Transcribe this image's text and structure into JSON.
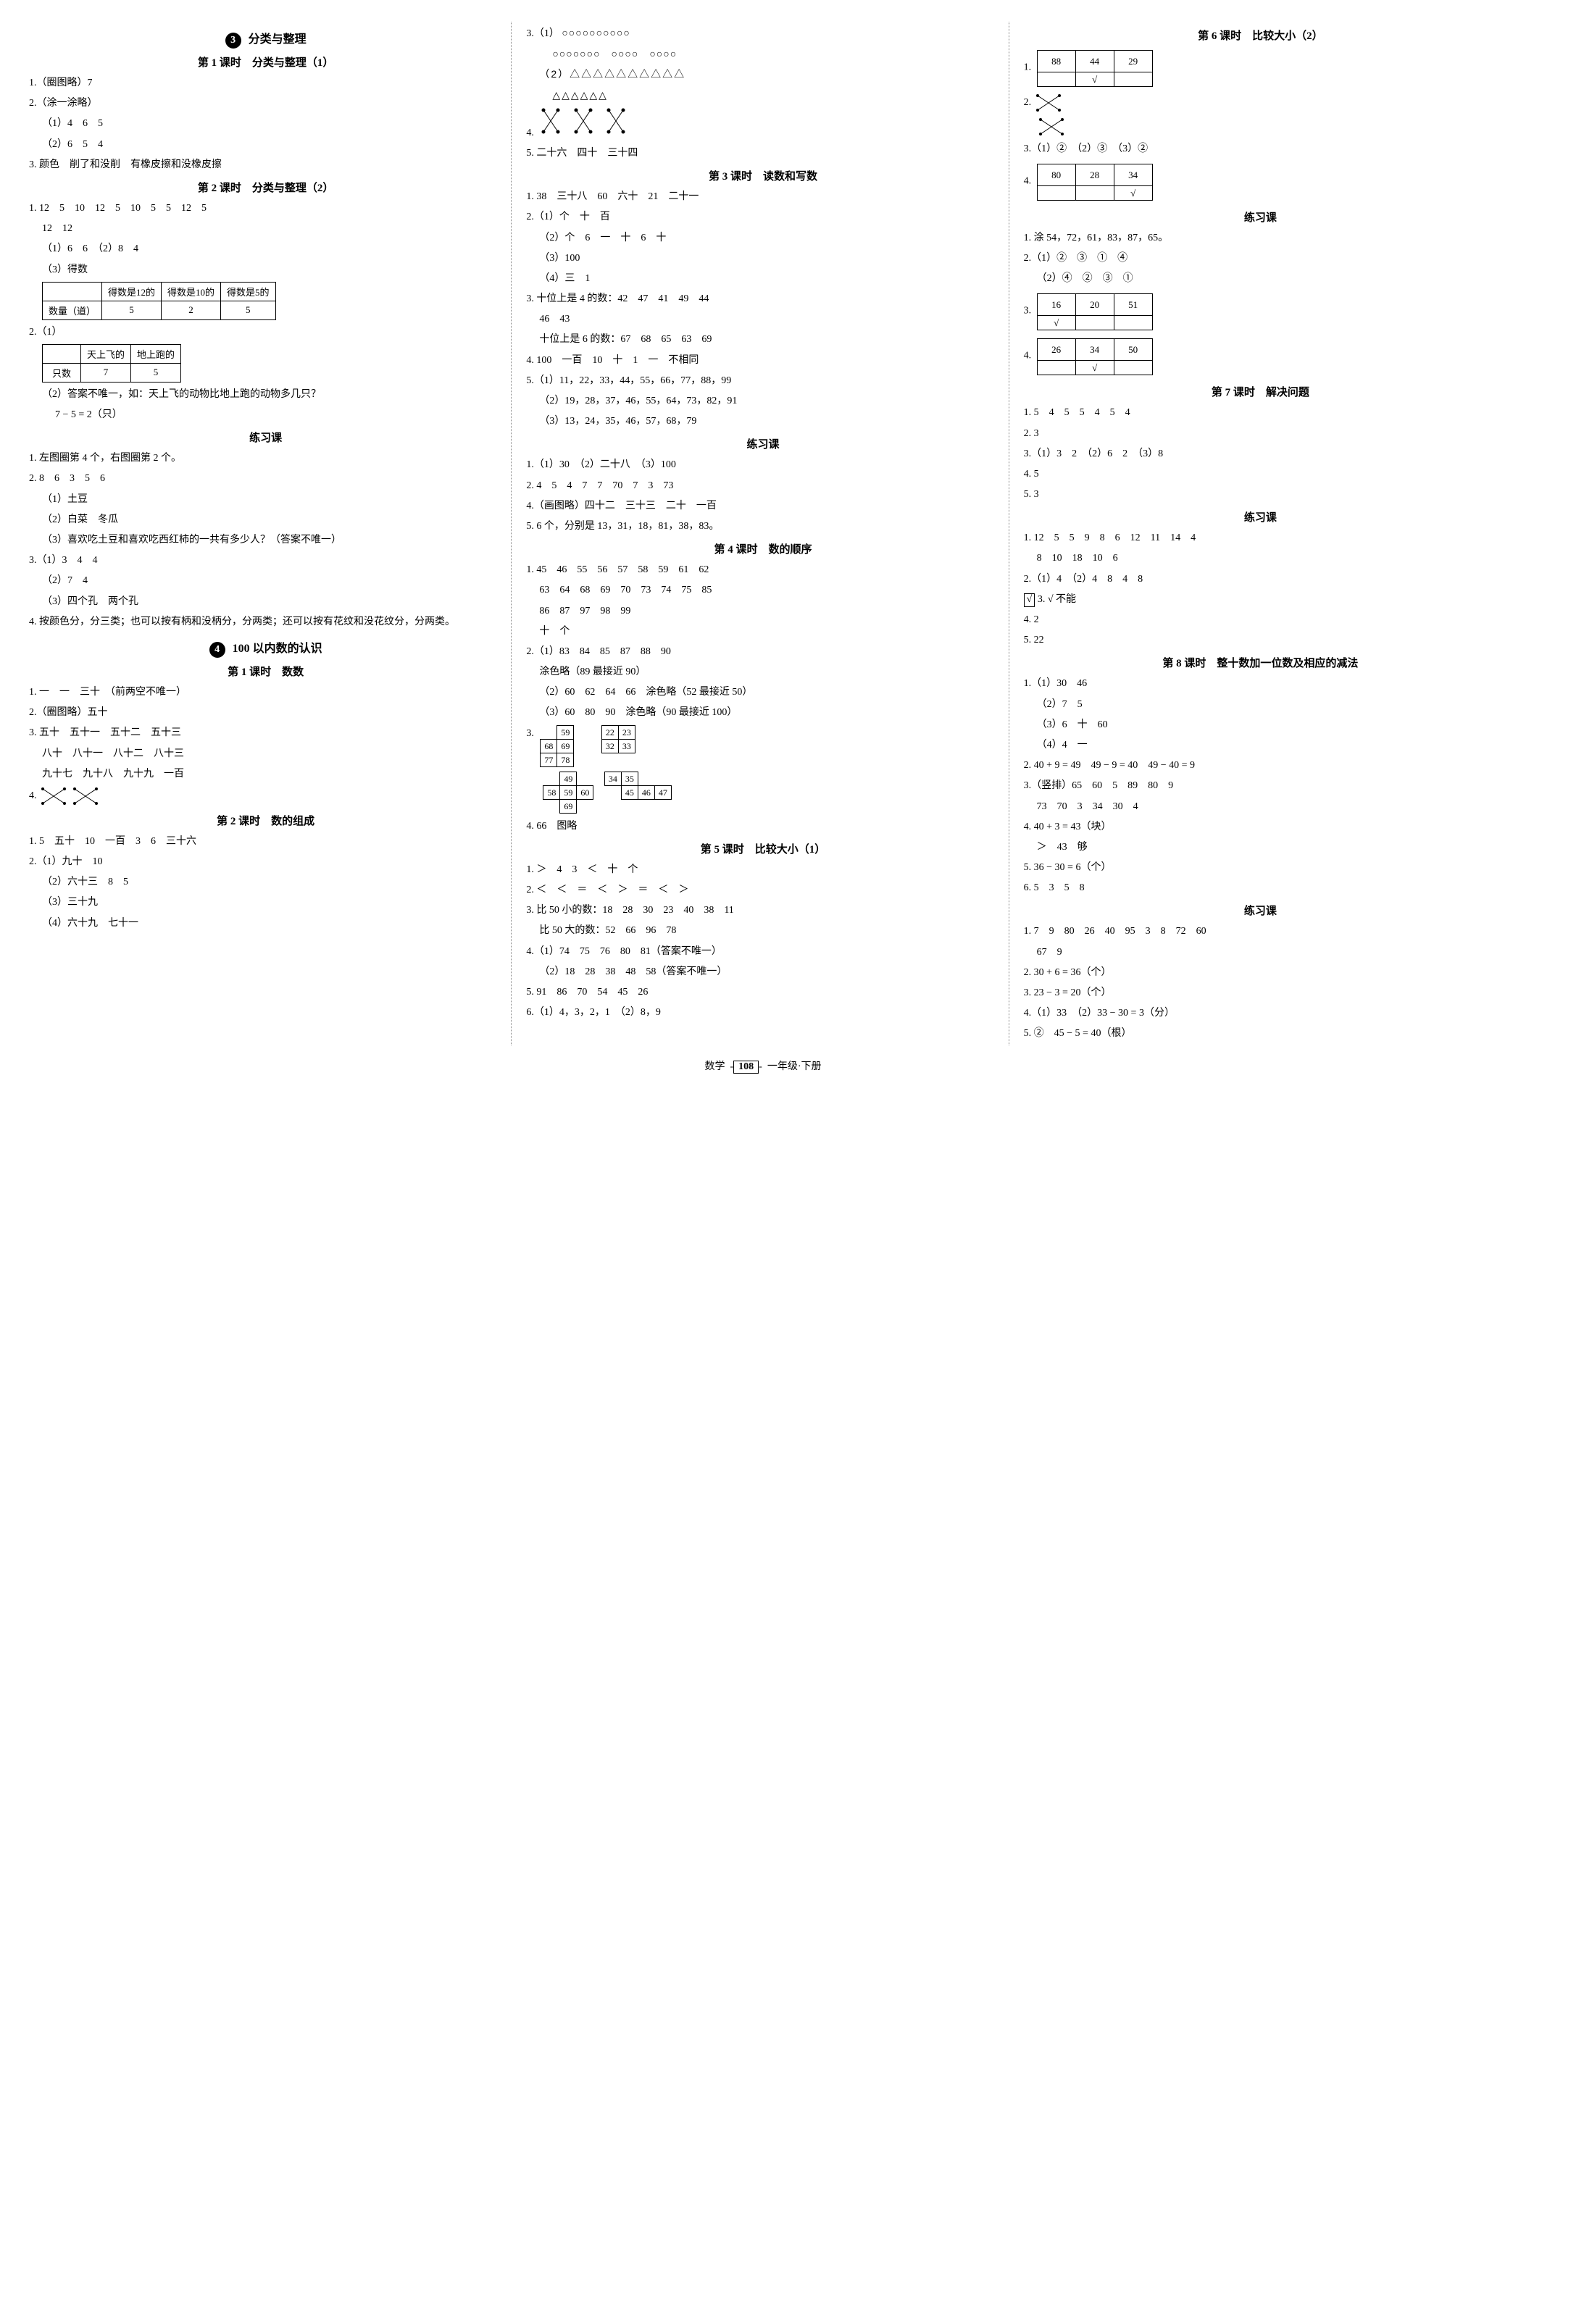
{
  "footer": {
    "subject": "数学",
    "page": "108",
    "grade": "一年级·下册"
  },
  "c1": {
    "sec3_num": "3",
    "sec3_title": "分类与整理",
    "s3l1_title": "第 1 课时　分类与整理（1）",
    "s3l1_1": "1.（圈图略）7",
    "s3l1_2": "2.（涂一涂略）",
    "s3l1_2a": "（1）4　6　5",
    "s3l1_2b": "（2）6　5　4",
    "s3l1_3": "3. 颜色　削了和没削　有橡皮擦和没橡皮擦",
    "s3l2_title": "第 2 课时　分类与整理（2）",
    "s3l2_1": "1. 12　5　10　12　5　10　5　5　12　5",
    "s3l2_1b": "12　12",
    "s3l2_1c": "（1）6　6　（2）8　4",
    "s3l2_1d": "（3）得数",
    "tbl_deshu": {
      "h": [
        "",
        "得数是12的",
        "得数是10的",
        "得数是5的"
      ],
      "r": [
        "数量（道）",
        "5",
        "2",
        "5"
      ]
    },
    "s3l2_2": "2.（1）",
    "tbl_animal": {
      "h": [
        "",
        "天上飞的",
        "地上跑的"
      ],
      "r": [
        "只数",
        "7",
        "5"
      ]
    },
    "s3l2_2b": "（2）答案不唯一，如：天上飞的动物比地上跑的动物多几只？",
    "s3l2_2c": "7 − 5 = 2（只）",
    "s3lx_title": "练习课",
    "s3lx_1": "1. 左图圈第 4 个，右图圈第 2 个。",
    "s3lx_2": "2. 8　6　3　5　6",
    "s3lx_2a": "（1）土豆",
    "s3lx_2b": "（2）白菜　冬瓜",
    "s3lx_2c": "（3）喜欢吃土豆和喜欢吃西红柿的一共有多少人？（答案不唯一）",
    "s3lx_3": "3.（1）3　4　4",
    "s3lx_3b": "（2）7　4",
    "s3lx_3c": "（3）四个孔　两个孔",
    "s3lx_4": "4. 按颜色分，分三类；也可以按有柄和没柄分，分两类；还可以按有花纹和没花纹分，分两类。",
    "sec4_num": "4",
    "sec4_title": "100 以内数的认识",
    "s4l1_title": "第 1 课时　数数",
    "s4l1_1": "1. 一　一　三十　（前两空不唯一）",
    "s4l1_2": "2.（圈图略）五十",
    "s4l1_3": "3. 五十　五十一　五十二　五十三",
    "s4l1_3b": "八十　八十一　八十二　八十三",
    "s4l1_3c": "九十七　九十八　九十九　一百",
    "s4l1_4": "4.",
    "s4l2_title": "第 2 课时　数的组成",
    "s4l2_1": "1. 5　五十　10　一百　3　6　三十六",
    "s4l2_2": "2.（1）九十　10",
    "s4l2_2b": "（2）六十三　8　5",
    "s4l2_2c": "（3）三十九",
    "s4l2_2d": "（4）六十九　七十一"
  },
  "c2": {
    "l3_1": "3.（1）",
    "circles_row1": "○○○○○○○○○○",
    "circles_row2": "○○○○○○○　○○○○　○○○○",
    "l3_2a": "（2）△△△△△△△△△△",
    "l3_2b": "△△△△△△",
    "l4": "4.",
    "l5": "5. 二十六　四十　三十四",
    "s3_title": "第 3 课时　读数和写数",
    "s3_1": "1. 38　三十八　60　六十　21　二十一",
    "s3_2a": "2.（1）个　十　百",
    "s3_2b": "（2）个　6　一　十　6　十",
    "s3_2c": "（3）100",
    "s3_2d": "（4）三　1",
    "s3_3a": "3. 十位上是 4 的数：42　47　41　49　44",
    "s3_3a2": "46　43",
    "s3_3b": "十位上是 6 的数：67　68　65　63　69",
    "s3_4": "4. 100　一百　10　十　1　一　不相同",
    "s3_5a": "5.（1）11，22，33，44，55，66，77，88，99",
    "s3_5b": "（2）19，28，37，46，55，64，73，82，91",
    "s3_5c": "（3）13，24，35，46，57，68，79",
    "lx_title": "练习课",
    "lx_1": "1.（1）30　（2）二十八　（3）100",
    "lx_2": "2. 4　5　4　7　7　70　7　3　73",
    "lx_4": "4.（画图略）四十二　三十三　二十　一百",
    "lx_5": "5. 6 个，分别是 13，31，18，81，38，83。",
    "s4_title": "第 4 课时　数的顺序",
    "s4_1a": "1. 45　46　55　56　57　58　59　61　62",
    "s4_1b": "63　64　68　69　70　73　74　75　85",
    "s4_1c": "86　87　97　98　99",
    "s4_1d": "十　个",
    "s4_2a": "2.（1）83　84　85　87　88　90",
    "s4_2a2": "涂色略（89 最接近 90）",
    "s4_2b": "（2）60　62　64　66　涂色略（52 最接近 50）",
    "s4_2c": "（3）60　80　90　涂色略（90 最接近 100）",
    "s4_3": "3.",
    "mg1": [
      [
        "",
        "59",
        ""
      ],
      [
        "68",
        "69",
        ""
      ],
      [
        "77",
        "78",
        ""
      ]
    ],
    "mg2": [
      [
        "22",
        "23"
      ],
      [
        "32",
        "33"
      ]
    ],
    "mg3": [
      [
        "",
        "49",
        ""
      ],
      [
        "58",
        "59",
        "60"
      ],
      [
        "",
        "69",
        ""
      ]
    ],
    "mg4": [
      [
        "34",
        "35",
        ""
      ],
      [
        "",
        "45",
        "46",
        "47"
      ]
    ],
    "s4_4": "4. 66　图略",
    "s5_title": "第 5 课时　比较大小（1）",
    "s5_1": "1. ＞　4　3　＜　十　个",
    "s5_2": "2. ＜　＜　＝　＜　＞　＝　＜　＞",
    "s5_3a": "3. 比 50 小的数：18　28　30　23　40　38　11",
    "s5_3b": "比 50 大的数：52　66　96　78",
    "s5_4a": "4.（1）74　75　76　80　81（答案不唯一）",
    "s5_4b": "（2）18　28　38　48　58（答案不唯一）",
    "s5_5": "5. 91　86　70　54　45　26",
    "s5_6": "6.（1）4，3，2，1　（2）8，9"
  },
  "c3": {
    "s6_title": "第 6 课时　比较大小（2）",
    "s6_1": "1.",
    "tbl1": {
      "r1": [
        "88",
        "44",
        "29"
      ],
      "r2": [
        "",
        "√",
        ""
      ]
    },
    "s6_2": "2.",
    "s6_3": "3.（1）②　（2）③　（3）②",
    "s6_4": "4.",
    "tbl4": {
      "r1": [
        "80",
        "28",
        "34"
      ],
      "r2": [
        "",
        "",
        "√"
      ]
    },
    "lx_title": "练习课",
    "lx_1": "1. 涂 54，72，61，83，87，65。",
    "lx_2a": "2.（1）②　③　①　④",
    "lx_2b": "（2）④　②　③　①",
    "lx_3": "3.",
    "tbl3a": {
      "r1": [
        "16",
        "20",
        "51"
      ],
      "r2": [
        "√",
        "",
        ""
      ]
    },
    "lx_4": "4.",
    "tbl3b": {
      "r1": [
        "26",
        "34",
        "50"
      ],
      "r2": [
        "",
        "√",
        ""
      ]
    },
    "s7_title": "第 7 课时　解决问题",
    "s7_1": "1. 5　4　5　5　4　5　4",
    "s7_2": "2. 3",
    "s7_3": "3.（1）3　2　（2）6　2　（3）8",
    "s7_4": "4. 5",
    "s7_5": "5. 3",
    "lx2_title": "练习课",
    "lx2_1a": "1. 12　5　5　9　8　6　12　11　14　4",
    "lx2_1b": "8　10　18　10　6",
    "lx2_2": "2.（1）4　（2）4　8　4　8",
    "lx2_3": "3. √ 不能",
    "lx2_4": "4. 2",
    "lx2_5": "5. 22",
    "s8_title": "第 8 课时　整十数加一位数及相应的减法",
    "s8_1": "1.（1）30　46",
    "s8_1b": "（2）7　5",
    "s8_1c": "（3）6　十　60",
    "s8_1d": "（4）4　一",
    "s8_2": "2. 40 + 9 = 49　49 − 9 = 40　49 − 40 = 9",
    "s8_3a": "3.（竖排）65　60　5　89　80　9",
    "s8_3b": "73　70　3　34　30　4",
    "s8_4a": "4. 40 + 3 = 43（块）",
    "s8_4b": "＞　43　够",
    "s8_5": "5. 36 − 30 = 6（个）",
    "s8_6": "6. 5　3　5　8",
    "lx3_title": "练习课",
    "lx3_1a": "1. 7　9　80　26　40　95　3　8　72　60",
    "lx3_1b": "67　9",
    "lx3_2": "2. 30 + 6 = 36（个）",
    "lx3_3": "3. 23 − 3 = 20（个）",
    "lx3_4": "4.（1）33　（2）33 − 30 = 3（分）",
    "lx3_5": "5. ②　45 − 5 = 40（根）"
  }
}
